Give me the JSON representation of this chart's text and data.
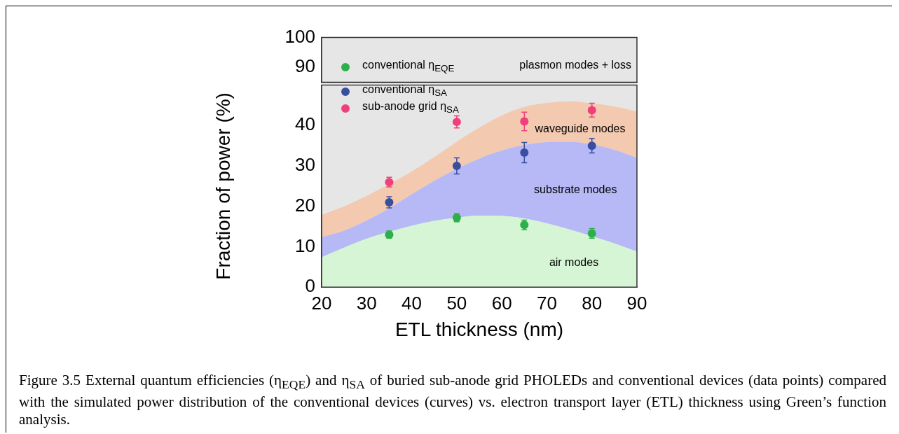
{
  "chart_data": [
    {
      "type": "area",
      "xlim": [
        20,
        90
      ],
      "xticks": [
        20,
        30,
        40,
        50,
        60,
        70,
        80,
        90
      ],
      "ylim": [
        85,
        100
      ],
      "yticks": [
        90,
        100
      ],
      "tick_labels": "y",
      "bands": [
        {
          "axis": "y",
          "from": 85,
          "to": 100,
          "label": "plasmon modes + loss",
          "color": "#e6e6e6"
        }
      ]
    },
    {
      "type": "area",
      "stacked": true,
      "xlabel": "ETL thickness (nm)",
      "ylabel": "Fraction of power (%)",
      "xlim": [
        20,
        90
      ],
      "xticks": [
        20,
        30,
        40,
        50,
        60,
        70,
        80,
        90
      ],
      "ylim": [
        0,
        50
      ],
      "yticks": [
        0,
        10,
        20,
        30,
        40
      ],
      "legend": "top left",
      "bands": [
        {
          "axis": "y",
          "from": 0,
          "to": 50,
          "color": "#e6e6e6"
        }
      ],
      "series": [
        {
          "color": "#d5f5d5",
          "x": [
            20,
            25,
            30,
            35,
            40,
            45,
            50,
            55,
            60,
            65,
            70,
            75,
            80,
            85,
            90
          ],
          "values": [
            7.4,
            9.8,
            12,
            13.7,
            15.2,
            16.4,
            17.2,
            17.7,
            17.6,
            17.0,
            15.8,
            14.3,
            12.6,
            10.8,
            8.8
          ]
        },
        {
          "color": "#b6b9f5",
          "x": [
            20,
            25,
            30,
            35,
            40,
            45,
            50,
            55,
            60,
            65,
            70,
            75,
            80,
            85,
            90
          ],
          "values": [
            5,
            4.2,
            4.5,
            5.8,
            7.8,
            9.9,
            12.1,
            14.1,
            16.2,
            18.2,
            20.1,
            21.7,
            22.7,
            23.2,
            23.2
          ]
        },
        {
          "color": "#f3c9b0",
          "x": [
            20,
            25,
            30,
            35,
            40,
            45,
            50,
            55,
            60,
            65,
            70,
            75,
            80,
            85,
            90
          ],
          "values": [
            5.5,
            6,
            6.1,
            6,
            5.6,
            5.9,
            6.7,
            7.7,
            8.7,
            9.4,
            9.7,
            10,
            10.2,
            10.7,
            11.5
          ]
        },
        {
          "type": "scatter",
          "marker": "circle",
          "name": "conventional η$_{EQE}$",
          "color": "#2db04b",
          "x": [
            35,
            50,
            65,
            80
          ],
          "values": [
            13,
            17.2,
            15.4,
            13.3
          ],
          "errors": [
            0.9,
            1,
            1.2,
            1.2
          ]
        },
        {
          "type": "scatter",
          "marker": "circle",
          "name": "conventional η$_{SA}$",
          "color": "#3a4ea0",
          "x": [
            35,
            50,
            65,
            80
          ],
          "values": [
            21,
            30,
            33.3,
            35
          ],
          "errors": [
            1.4,
            2,
            2.5,
            1.8
          ]
        },
        {
          "type": "scatter",
          "marker": "circle",
          "name": "sub-anode grid η$_{SA}$",
          "color": "#f0407a",
          "x": [
            35,
            50,
            65,
            80
          ],
          "values": [
            26,
            40.9,
            41,
            43.8
          ],
          "errors": [
            1.2,
            1.5,
            2.3,
            1.7
          ]
        }
      ],
      "annotations": [
        "waveguide modes",
        "substrate modes",
        "air modes",
        "Figure 3.5 External quantum efficiencies (η$_{EQE}$) and η$_{SA}$ of buried sub-anode grid PHOLEDs and conventional devices (data points) compared with the simulated power distribution of the conventional devices (curves) vs. electron transport layer (ETL) thickness using Green’s function analysis."
      ]
    }
  ]
}
